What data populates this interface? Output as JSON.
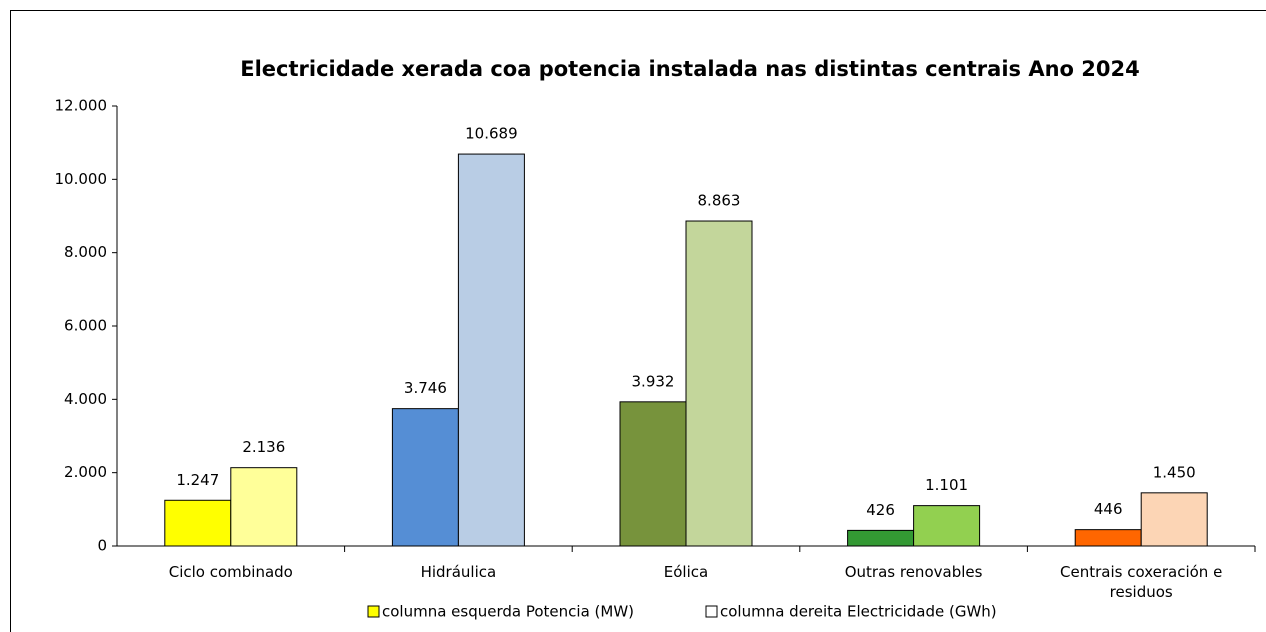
{
  "chart_data": {
    "type": "bar",
    "title": "Electricidade xerada coa potencia instalada nas distintas centrais Ano 2024",
    "categories": [
      "Ciclo combinado",
      "Hidráulica",
      "Eólica",
      "Outras renovables",
      "Centrais coxeración e residuos"
    ],
    "series": [
      {
        "name": "columna esquerda Potencia (MW)",
        "color": "#ffff00",
        "colors": [
          "#ffff00",
          "#558ed5",
          "#77933c",
          "#339933",
          "#ff6600"
        ],
        "values": [
          1247,
          3746,
          3932,
          426,
          446
        ],
        "value_labels": [
          "1.247",
          "3.746",
          "3.932",
          "426",
          "446"
        ]
      },
      {
        "name": "columna dereita Electricidade (GWh)",
        "color": "#ffffff",
        "colors": [
          "#ffff99",
          "#b9cde5",
          "#c3d69b",
          "#92d050",
          "#fcd5b5"
        ],
        "values": [
          2136,
          10689,
          8863,
          1101,
          1450
        ],
        "value_labels": [
          "2.136",
          "10.689",
          "8.863",
          "1.101",
          "1.450"
        ]
      }
    ],
    "ylim": [
      0,
      12000
    ],
    "yticks": [
      0,
      {
        "value": 2000,
        "label": "2.000"
      },
      {
        "value": 4000,
        "label": "4.000"
      },
      {
        "value": 6000,
        "label": "6.000"
      },
      {
        "value": 8000,
        "label": "8.000"
      },
      {
        "value": 10000,
        "label": "10.000"
      },
      {
        "value": 12000,
        "label": "12.000"
      }
    ],
    "grid": false
  }
}
